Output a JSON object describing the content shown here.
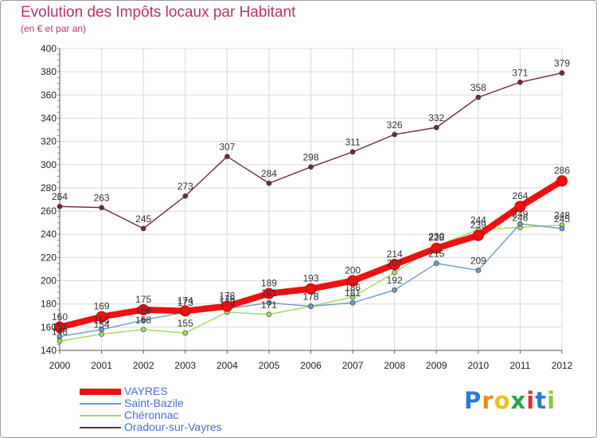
{
  "chart_data": {
    "type": "line",
    "title": "Evolution des Impôts locaux par Habitant",
    "subtitle": "(en € et par an)",
    "xlabel": "",
    "ylabel": "",
    "categories": [
      "2000",
      "2001",
      "2002",
      "2003",
      "2004",
      "2005",
      "2006",
      "2007",
      "2008",
      "2009",
      "2010",
      "2011",
      "2012"
    ],
    "ylim": [
      140,
      400
    ],
    "yticks": [
      140,
      160,
      180,
      200,
      220,
      240,
      260,
      280,
      300,
      320,
      340,
      360,
      380,
      400
    ],
    "grid": true,
    "legend_position": "bottom-left",
    "series": [
      {
        "name": "Oradour-sur-Vayres",
        "color": "#6e2d2d",
        "values": [
          264,
          263,
          245,
          273,
          307,
          284,
          298,
          311,
          326,
          332,
          358,
          371,
          379
        ]
      },
      {
        "name": "Chéronnac",
        "color": "#9ed867",
        "values": [
          148,
          154,
          158,
          155,
          173,
          171,
          178,
          186,
          207,
          230,
          244,
          246,
          248
        ]
      },
      {
        "name": "Saint-Bazile",
        "color": "#6a9ac8",
        "values": [
          152,
          158,
          166,
          173,
          176,
          181,
          178,
          181,
          192,
          215,
          209,
          249,
          245
        ]
      },
      {
        "name": "VAYRES",
        "color": "#ee1111",
        "values": [
          160,
          169,
          175,
          174,
          178,
          189,
          193,
          200,
          214,
          228,
          239,
          264,
          286
        ]
      }
    ]
  },
  "legend": {
    "items": [
      "VAYRES",
      "Saint-Bazile",
      "Chéronnac",
      "Oradour-sur-Vayres"
    ]
  },
  "brand": {
    "letters": [
      "P",
      "r",
      "o",
      "x",
      "i",
      "t",
      "i"
    ],
    "colors": [
      "#2b7bd6",
      "#f28a1b",
      "#e8c21a",
      "#2aa54a",
      "#d63131",
      "#2b7bd6",
      "#8cc63f"
    ]
  }
}
